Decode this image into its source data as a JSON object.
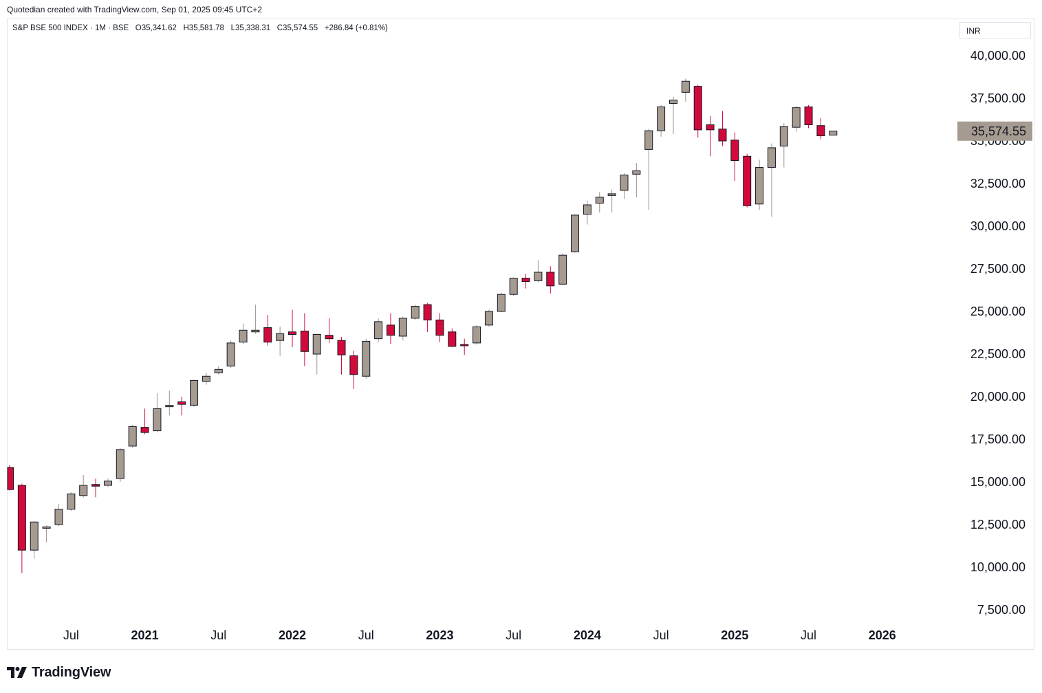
{
  "credit": "Quotedian created with TradingView.com, Sep 01, 2025 09:45 UTC+2",
  "legend": {
    "symbol": "S&P BSE 500 INDEX · 1M · BSE",
    "open_label": "O",
    "open": "35,341.62",
    "high_label": "H",
    "high": "35,581.78",
    "low_label": "L",
    "low": "35,338.31",
    "close_label": "C",
    "close": "35,574.55",
    "change": "+286.84 (+0.81%)"
  },
  "currency": "INR",
  "brand": "TradingView",
  "colors": {
    "up": "#a69b91",
    "down": "#d20a3c",
    "outline": "#131722",
    "last_price_bg": "#a69b91"
  },
  "chart_data": {
    "type": "candlestick",
    "interval": "1M",
    "ylim": [
      6500,
      41000
    ],
    "y_ticks": [
      7500,
      10000,
      12500,
      15000,
      17500,
      20000,
      22500,
      25000,
      27500,
      30000,
      32500,
      35000,
      37500,
      40000
    ],
    "y_tick_labels": [
      "7,500.00",
      "10,000.00",
      "12,500.00",
      "15,000.00",
      "17,500.00",
      "20,000.00",
      "22,500.00",
      "25,000.00",
      "27,500.00",
      "30,000.00",
      "32,500.00",
      "35,000.00",
      "37,500.00",
      "40,000.00"
    ],
    "x_ticks": [
      {
        "label": "Jul",
        "month": "2020-07",
        "bold": false
      },
      {
        "label": "2021",
        "month": "2021-01",
        "bold": true
      },
      {
        "label": "Jul",
        "month": "2021-07",
        "bold": false
      },
      {
        "label": "2022",
        "month": "2022-01",
        "bold": true
      },
      {
        "label": "Jul",
        "month": "2022-07",
        "bold": false
      },
      {
        "label": "2023",
        "month": "2023-01",
        "bold": true
      },
      {
        "label": "Jul",
        "month": "2023-07",
        "bold": false
      },
      {
        "label": "2024",
        "month": "2024-01",
        "bold": true
      },
      {
        "label": "Jul",
        "month": "2024-07",
        "bold": false
      },
      {
        "label": "2025",
        "month": "2025-01",
        "bold": true
      },
      {
        "label": "Jul",
        "month": "2025-07",
        "bold": false
      },
      {
        "label": "2026",
        "month": "2026-01",
        "bold": true
      }
    ],
    "last_price": 35574.55,
    "last_price_label": "35,574.55",
    "candles": [
      {
        "month": "2020-02",
        "o": 15850,
        "h": 16000,
        "l": 14500,
        "c": 14550
      },
      {
        "month": "2020-03",
        "o": 14800,
        "h": 14900,
        "l": 9650,
        "c": 11000
      },
      {
        "month": "2020-04",
        "o": 11000,
        "h": 12700,
        "l": 10500,
        "c": 12650
      },
      {
        "month": "2020-05",
        "o": 12300,
        "h": 12450,
        "l": 11450,
        "c": 12350
      },
      {
        "month": "2020-06",
        "o": 12500,
        "h": 13700,
        "l": 12400,
        "c": 13400
      },
      {
        "month": "2020-07",
        "o": 13400,
        "h": 14400,
        "l": 13300,
        "c": 14300
      },
      {
        "month": "2020-08",
        "o": 14200,
        "h": 15400,
        "l": 14100,
        "c": 14800
      },
      {
        "month": "2020-09",
        "o": 14850,
        "h": 15200,
        "l": 14100,
        "c": 14750
      },
      {
        "month": "2020-10",
        "o": 14800,
        "h": 15200,
        "l": 14700,
        "c": 15050
      },
      {
        "month": "2020-11",
        "o": 15200,
        "h": 17000,
        "l": 15000,
        "c": 16900
      },
      {
        "month": "2020-12",
        "o": 17100,
        "h": 18350,
        "l": 17000,
        "c": 18250
      },
      {
        "month": "2021-01",
        "o": 18200,
        "h": 19300,
        "l": 17800,
        "c": 17900
      },
      {
        "month": "2021-02",
        "o": 18000,
        "h": 20200,
        "l": 17900,
        "c": 19300
      },
      {
        "month": "2021-03",
        "o": 19450,
        "h": 20350,
        "l": 18900,
        "c": 19450
      },
      {
        "month": "2021-04",
        "o": 19700,
        "h": 20000,
        "l": 18900,
        "c": 19550
      },
      {
        "month": "2021-05",
        "o": 19500,
        "h": 21000,
        "l": 19400,
        "c": 20950
      },
      {
        "month": "2021-06",
        "o": 20900,
        "h": 21400,
        "l": 20700,
        "c": 21200
      },
      {
        "month": "2021-07",
        "o": 21400,
        "h": 21800,
        "l": 21300,
        "c": 21600
      },
      {
        "month": "2021-08",
        "o": 21800,
        "h": 23300,
        "l": 21700,
        "c": 23150
      },
      {
        "month": "2021-09",
        "o": 23200,
        "h": 24300,
        "l": 23100,
        "c": 23900
      },
      {
        "month": "2021-10",
        "o": 23800,
        "h": 25400,
        "l": 23700,
        "c": 23900
      },
      {
        "month": "2021-11",
        "o": 24050,
        "h": 24800,
        "l": 23000,
        "c": 23200
      },
      {
        "month": "2021-12",
        "o": 23300,
        "h": 24100,
        "l": 22400,
        "c": 23700
      },
      {
        "month": "2022-01",
        "o": 23800,
        "h": 25100,
        "l": 22900,
        "c": 23650
      },
      {
        "month": "2022-02",
        "o": 23850,
        "h": 24900,
        "l": 21800,
        "c": 22650
      },
      {
        "month": "2022-03",
        "o": 22500,
        "h": 23700,
        "l": 21300,
        "c": 23650
      },
      {
        "month": "2022-04",
        "o": 23600,
        "h": 24600,
        "l": 23150,
        "c": 23400
      },
      {
        "month": "2022-05",
        "o": 23300,
        "h": 23500,
        "l": 21300,
        "c": 22450
      },
      {
        "month": "2022-06",
        "o": 22400,
        "h": 22700,
        "l": 20450,
        "c": 21300
      },
      {
        "month": "2022-07",
        "o": 21200,
        "h": 23400,
        "l": 21050,
        "c": 23250
      },
      {
        "month": "2022-08",
        "o": 23400,
        "h": 24600,
        "l": 23200,
        "c": 24400
      },
      {
        "month": "2022-09",
        "o": 24200,
        "h": 24900,
        "l": 23100,
        "c": 23600
      },
      {
        "month": "2022-10",
        "o": 23550,
        "h": 24700,
        "l": 23300,
        "c": 24600
      },
      {
        "month": "2022-11",
        "o": 24600,
        "h": 25400,
        "l": 24500,
        "c": 25300
      },
      {
        "month": "2022-12",
        "o": 25400,
        "h": 25500,
        "l": 23800,
        "c": 24500
      },
      {
        "month": "2023-01",
        "o": 24500,
        "h": 24900,
        "l": 23200,
        "c": 23600
      },
      {
        "month": "2023-02",
        "o": 23800,
        "h": 24000,
        "l": 22900,
        "c": 22950
      },
      {
        "month": "2023-03",
        "o": 23050,
        "h": 23400,
        "l": 22450,
        "c": 23000
      },
      {
        "month": "2023-04",
        "o": 23150,
        "h": 24200,
        "l": 23050,
        "c": 24100
      },
      {
        "month": "2023-05",
        "o": 24200,
        "h": 25100,
        "l": 24100,
        "c": 25000
      },
      {
        "month": "2023-06",
        "o": 25000,
        "h": 26100,
        "l": 24950,
        "c": 26000
      },
      {
        "month": "2023-07",
        "o": 26000,
        "h": 27000,
        "l": 25900,
        "c": 26950
      },
      {
        "month": "2023-08",
        "o": 26950,
        "h": 27200,
        "l": 26350,
        "c": 26750
      },
      {
        "month": "2023-09",
        "o": 26800,
        "h": 28000,
        "l": 26700,
        "c": 27300
      },
      {
        "month": "2023-10",
        "o": 27300,
        "h": 27650,
        "l": 26050,
        "c": 26500
      },
      {
        "month": "2023-11",
        "o": 26600,
        "h": 28400,
        "l": 26550,
        "c": 28300
      },
      {
        "month": "2023-12",
        "o": 28500,
        "h": 30700,
        "l": 28450,
        "c": 30650
      },
      {
        "month": "2024-01",
        "o": 30700,
        "h": 31500,
        "l": 30100,
        "c": 31250
      },
      {
        "month": "2024-02",
        "o": 31350,
        "h": 32000,
        "l": 30800,
        "c": 31700
      },
      {
        "month": "2024-03",
        "o": 31800,
        "h": 32150,
        "l": 30800,
        "c": 31900
      },
      {
        "month": "2024-04",
        "o": 32100,
        "h": 33100,
        "l": 31600,
        "c": 33000
      },
      {
        "month": "2024-05",
        "o": 33050,
        "h": 33700,
        "l": 31700,
        "c": 33250
      },
      {
        "month": "2024-06",
        "o": 34500,
        "h": 35700,
        "l": 30950,
        "c": 35600
      },
      {
        "month": "2024-07",
        "o": 35600,
        "h": 37100,
        "l": 35250,
        "c": 37000
      },
      {
        "month": "2024-08",
        "o": 37200,
        "h": 37600,
        "l": 35400,
        "c": 37400
      },
      {
        "month": "2024-09",
        "o": 37850,
        "h": 38650,
        "l": 37300,
        "c": 38500
      },
      {
        "month": "2024-10",
        "o": 38200,
        "h": 38300,
        "l": 35200,
        "c": 35650
      },
      {
        "month": "2024-11",
        "o": 35950,
        "h": 36450,
        "l": 34100,
        "c": 35650
      },
      {
        "month": "2024-12",
        "o": 35700,
        "h": 36750,
        "l": 34700,
        "c": 35000
      },
      {
        "month": "2025-01",
        "o": 35050,
        "h": 35500,
        "l": 32650,
        "c": 33850
      },
      {
        "month": "2025-02",
        "o": 34100,
        "h": 34250,
        "l": 31100,
        "c": 31200
      },
      {
        "month": "2025-03",
        "o": 31300,
        "h": 33900,
        "l": 30950,
        "c": 33450
      },
      {
        "month": "2025-04",
        "o": 33450,
        "h": 34850,
        "l": 30550,
        "c": 34600
      },
      {
        "month": "2025-05",
        "o": 34700,
        "h": 36050,
        "l": 33450,
        "c": 35850
      },
      {
        "month": "2025-06",
        "o": 35800,
        "h": 37050,
        "l": 35550,
        "c": 36950
      },
      {
        "month": "2025-07",
        "o": 37000,
        "h": 37100,
        "l": 35750,
        "c": 35950
      },
      {
        "month": "2025-08",
        "o": 35900,
        "h": 36350,
        "l": 35100,
        "c": 35300
      },
      {
        "month": "2025-09",
        "o": 35341.62,
        "h": 35581.78,
        "l": 35338.31,
        "c": 35574.55
      }
    ]
  }
}
